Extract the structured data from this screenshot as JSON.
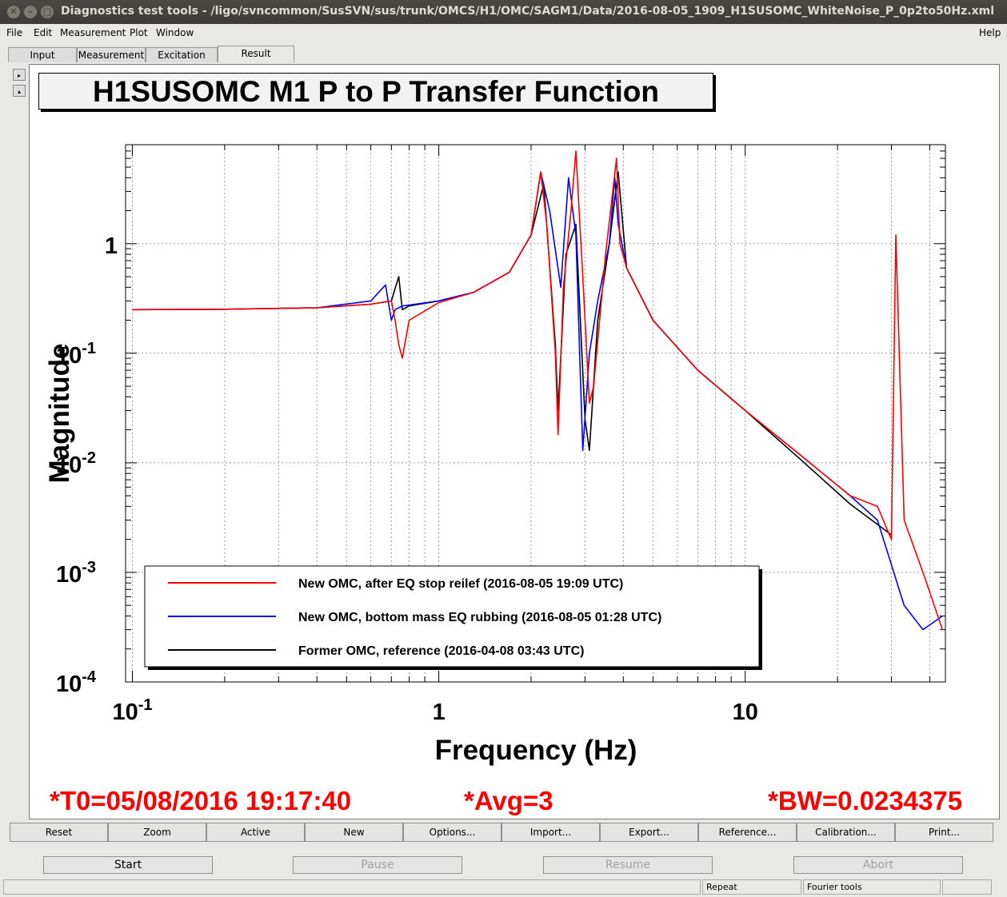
{
  "window": {
    "title": "Diagnostics test tools - /ligo/svncommon/SusSVN/sus/trunk/OMCS/H1/OMC/SAGM1/Data/2016-08-05_1909_H1SUSOMC_WhiteNoise_P_0p2to50Hz.xml",
    "close_glyph": "✕",
    "min_glyph": "–",
    "max_glyph": "□"
  },
  "menu": {
    "file": "File",
    "edit": "Edit",
    "measurement": "Measurement",
    "plot": "Plot",
    "window": "Window",
    "help": "Help"
  },
  "tabs": {
    "input": "Input",
    "measurement": "Measurement",
    "excitation": "Excitation",
    "result": "Result"
  },
  "side_arrows": {
    "right": "▸",
    "up": "▴"
  },
  "plot": {
    "title": "H1SUSOMC M1 P to P Transfer Function",
    "xlabel": "Frequency (Hz)",
    "ylabel": "Magnitude",
    "xticks": [
      {
        "base": "10",
        "exp": "-1"
      },
      {
        "base": "1",
        "exp": ""
      },
      {
        "base": "10",
        "exp": ""
      }
    ],
    "yticks": [
      {
        "base": "1",
        "exp": ""
      },
      {
        "base": "10",
        "exp": "-1"
      },
      {
        "base": "10",
        "exp": "-2"
      },
      {
        "base": "10",
        "exp": "-3"
      },
      {
        "base": "10",
        "exp": "-4"
      }
    ],
    "legend": [
      {
        "label": "New OMC, after EQ stop reilef (2016-08-05 19:09 UTC)",
        "color": "#ff0000"
      },
      {
        "label": "New OMC, bottom mass EQ rubbing  (2016-08-05 01:28 UTC)",
        "color": "#0000ff"
      },
      {
        "label": "Former OMC, reference (2016-04-08 03:43 UTC)",
        "color": "#000000"
      }
    ]
  },
  "chart_data": {
    "type": "line",
    "title": "H1SUSOMC M1 P to P Transfer Function",
    "xlabel": "Frequency (Hz)",
    "ylabel": "Magnitude",
    "xscale": "log",
    "yscale": "log",
    "xlim": [
      0.095,
      45
    ],
    "ylim": [
      0.0001,
      8
    ],
    "grid": true,
    "legend_position": "bottom-left",
    "series": [
      {
        "name": "New OMC, after EQ stop reilef (2016-08-05 19:09 UTC)",
        "color": "#ff0000",
        "x": [
          0.1,
          0.2,
          0.4,
          0.6,
          0.7,
          0.72,
          0.74,
          0.76,
          0.8,
          1.0,
          1.3,
          1.7,
          2.0,
          2.15,
          2.25,
          2.4,
          2.45,
          2.55,
          2.7,
          2.8,
          2.95,
          3.1,
          3.2,
          3.5,
          3.8,
          3.9,
          4.1,
          5.0,
          7.0,
          10.0,
          15.0,
          22.0,
          27.0,
          30.0,
          31.0,
          33.0,
          38.0,
          44.0
        ],
        "y": [
          0.25,
          0.252,
          0.26,
          0.28,
          0.3,
          0.2,
          0.12,
          0.09,
          0.2,
          0.29,
          0.36,
          0.55,
          1.2,
          4.5,
          1.5,
          0.1,
          0.018,
          0.4,
          2.0,
          7.0,
          0.5,
          0.035,
          0.05,
          0.8,
          6.0,
          1.0,
          0.6,
          0.2,
          0.07,
          0.03,
          0.012,
          0.005,
          0.004,
          0.002,
          1.2,
          0.003,
          0.001,
          0.0003
        ]
      },
      {
        "name": "New OMC, bottom mass EQ rubbing  (2016-08-05 01:28 UTC)",
        "color": "#0000ff",
        "x": [
          0.1,
          0.2,
          0.4,
          0.6,
          0.67,
          0.7,
          0.72,
          0.76,
          1.0,
          1.3,
          1.7,
          2.0,
          2.15,
          2.3,
          2.5,
          2.65,
          2.8,
          2.95,
          3.1,
          3.3,
          3.6,
          3.75,
          3.85,
          4.1,
          5.0,
          7.0,
          10.0,
          15.0,
          22.0,
          27.0,
          33.0,
          38.0,
          44.0
        ],
        "y": [
          0.25,
          0.252,
          0.26,
          0.3,
          0.42,
          0.2,
          0.25,
          0.27,
          0.3,
          0.36,
          0.55,
          1.2,
          4.5,
          2.0,
          0.4,
          4.0,
          1.2,
          0.013,
          0.1,
          0.3,
          1.0,
          4.0,
          1.5,
          0.6,
          0.2,
          0.07,
          0.03,
          0.012,
          0.005,
          0.003,
          0.0005,
          0.0003,
          0.0004
        ]
      },
      {
        "name": "Former OMC, reference (2016-04-08 03:43 UTC)",
        "color": "#000000",
        "x": [
          0.1,
          0.2,
          0.4,
          0.6,
          0.7,
          0.74,
          0.76,
          0.8,
          1.0,
          1.3,
          1.7,
          2.0,
          2.2,
          2.4,
          2.45,
          2.6,
          2.8,
          3.0,
          3.1,
          3.3,
          3.6,
          3.85,
          4.1,
          5.0,
          7.0,
          10.0,
          15.0,
          22.0,
          30.0
        ],
        "y": [
          0.25,
          0.252,
          0.26,
          0.28,
          0.3,
          0.5,
          0.25,
          0.27,
          0.3,
          0.36,
          0.55,
          1.2,
          3.5,
          0.12,
          0.03,
          0.8,
          1.5,
          0.025,
          0.013,
          0.2,
          1.0,
          4.5,
          0.6,
          0.2,
          0.07,
          0.03,
          0.011,
          0.0042,
          0.0022
        ]
      }
    ]
  },
  "stats": {
    "t0": "*T0=05/08/2016 19:17:40",
    "avg": "*Avg=3",
    "bw": "*BW=0.0234375"
  },
  "toolbar": [
    "Reset",
    "Zoom",
    "Active",
    "New",
    "Options...",
    "Import...",
    "Export...",
    "Reference...",
    "Calibration...",
    "Print..."
  ],
  "controls": {
    "start": "Start",
    "pause": "Pause",
    "resume": "Resume",
    "abort": "Abort"
  },
  "status": {
    "repeat": "Repeat",
    "fourier": "Fourier tools"
  }
}
